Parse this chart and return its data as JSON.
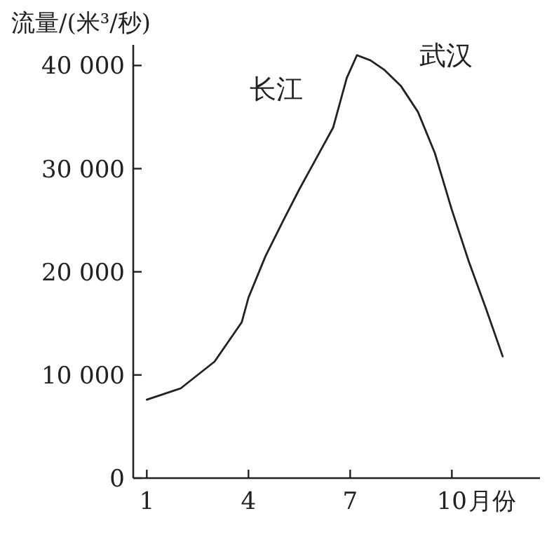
{
  "chart_data": {
    "type": "line",
    "ylabel": "流量/(米³/秒)",
    "xlabel": "月份",
    "x": [
      1,
      2,
      3,
      3.8,
      4,
      4.5,
      5,
      5.5,
      6,
      6.5,
      6.9,
      7.2,
      7.6,
      8,
      8.5,
      9,
      9.5,
      10,
      10.5,
      11,
      11.5
    ],
    "series": [
      {
        "color": "#222222",
        "values": [
          7600,
          8700,
          11300,
          15100,
          17500,
          21500,
          24800,
          28000,
          31000,
          34000,
          38800,
          41000,
          40500,
          39600,
          38000,
          35500,
          31500,
          26000,
          21000,
          16500,
          11800
        ]
      }
    ],
    "xlim": [
      0.6,
      12.6
    ],
    "ylim": [
      0,
      42000
    ],
    "xticks": [
      1,
      4,
      7,
      10
    ],
    "yticks": [
      0,
      {
        "value": 10000,
        "label": "10 000"
      },
      {
        "value": 20000,
        "label": "20 000"
      },
      {
        "value": 30000,
        "label": "30 000"
      },
      {
        "value": 40000,
        "label": "40 000"
      }
    ],
    "annotations": [
      "长江",
      "武汉"
    ],
    "grid": false,
    "marker": "none",
    "line_style": "solid"
  }
}
